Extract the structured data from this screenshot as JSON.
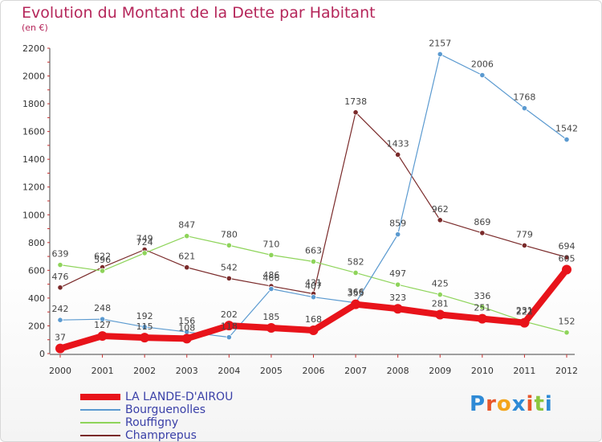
{
  "title": "Evolution du Montant de la Dette par Habitant",
  "subtitle": "(en €)",
  "logo": {
    "text": "Proxiti",
    "colors": [
      "#2e8ad6",
      "#e8562a",
      "#f3a51c",
      "#2e8ad6",
      "#e8562a",
      "#8cc63f",
      "#2e8ad6"
    ]
  },
  "chart_data": {
    "type": "line",
    "title": "Evolution du Montant de la Dette par Habitant",
    "ylabel": "(en €)",
    "x": [
      "2000",
      "2001",
      "2002",
      "2003",
      "2004",
      "2005",
      "2006",
      "2007",
      "2008",
      "2009",
      "2010",
      "2011",
      "2012"
    ],
    "ylim": [
      0,
      2200
    ],
    "yticks": [
      "0",
      "200",
      "400",
      "600",
      "800",
      "1000",
      "1200",
      "1400",
      "1600",
      "1800",
      "2000",
      "2200"
    ],
    "grid": false,
    "legend_position": "bottom-left",
    "series": [
      {
        "name": "LA LANDE-D'AIROU",
        "color": "#e8131a",
        "values": [
          37,
          127,
          115,
          108,
          202,
          185,
          168,
          355,
          323,
          281,
          251,
          222,
          605
        ],
        "labels": [
          "37",
          "127",
          "115",
          "108",
          "202",
          "185",
          "168",
          "355",
          "323",
          "281",
          "251",
          "222",
          "605"
        ]
      },
      {
        "name": "Bourguenolles",
        "color": "#5b9ad0",
        "values": [
          242,
          248,
          192,
          156,
          118,
          466,
          407,
          366,
          859,
          2157,
          2006,
          1768,
          1542
        ],
        "labels": [
          "242",
          "248",
          "192",
          "156",
          "118",
          "466",
          "407",
          "366",
          "859",
          "2157",
          "2006",
          "1768",
          "1542"
        ]
      },
      {
        "name": "Rouffigny",
        "color": "#8ed45a",
        "values": [
          639,
          596,
          724,
          847,
          780,
          710,
          663,
          582,
          497,
          425,
          336,
          231,
          152
        ],
        "labels": [
          "639",
          "596",
          "724",
          "847",
          "780",
          "710",
          "663",
          "582",
          "497",
          "425",
          "336",
          "231",
          "152"
        ]
      },
      {
        "name": "Champrepus",
        "color": "#7a2a2a",
        "values": [
          476,
          622,
          749,
          621,
          542,
          486,
          431,
          1738,
          1433,
          962,
          869,
          779,
          694
        ],
        "labels": [
          "476",
          "622",
          "749",
          "621",
          "542",
          "486",
          "431",
          "1738",
          "1433",
          "962",
          "869",
          "779",
          "694"
        ]
      }
    ]
  }
}
